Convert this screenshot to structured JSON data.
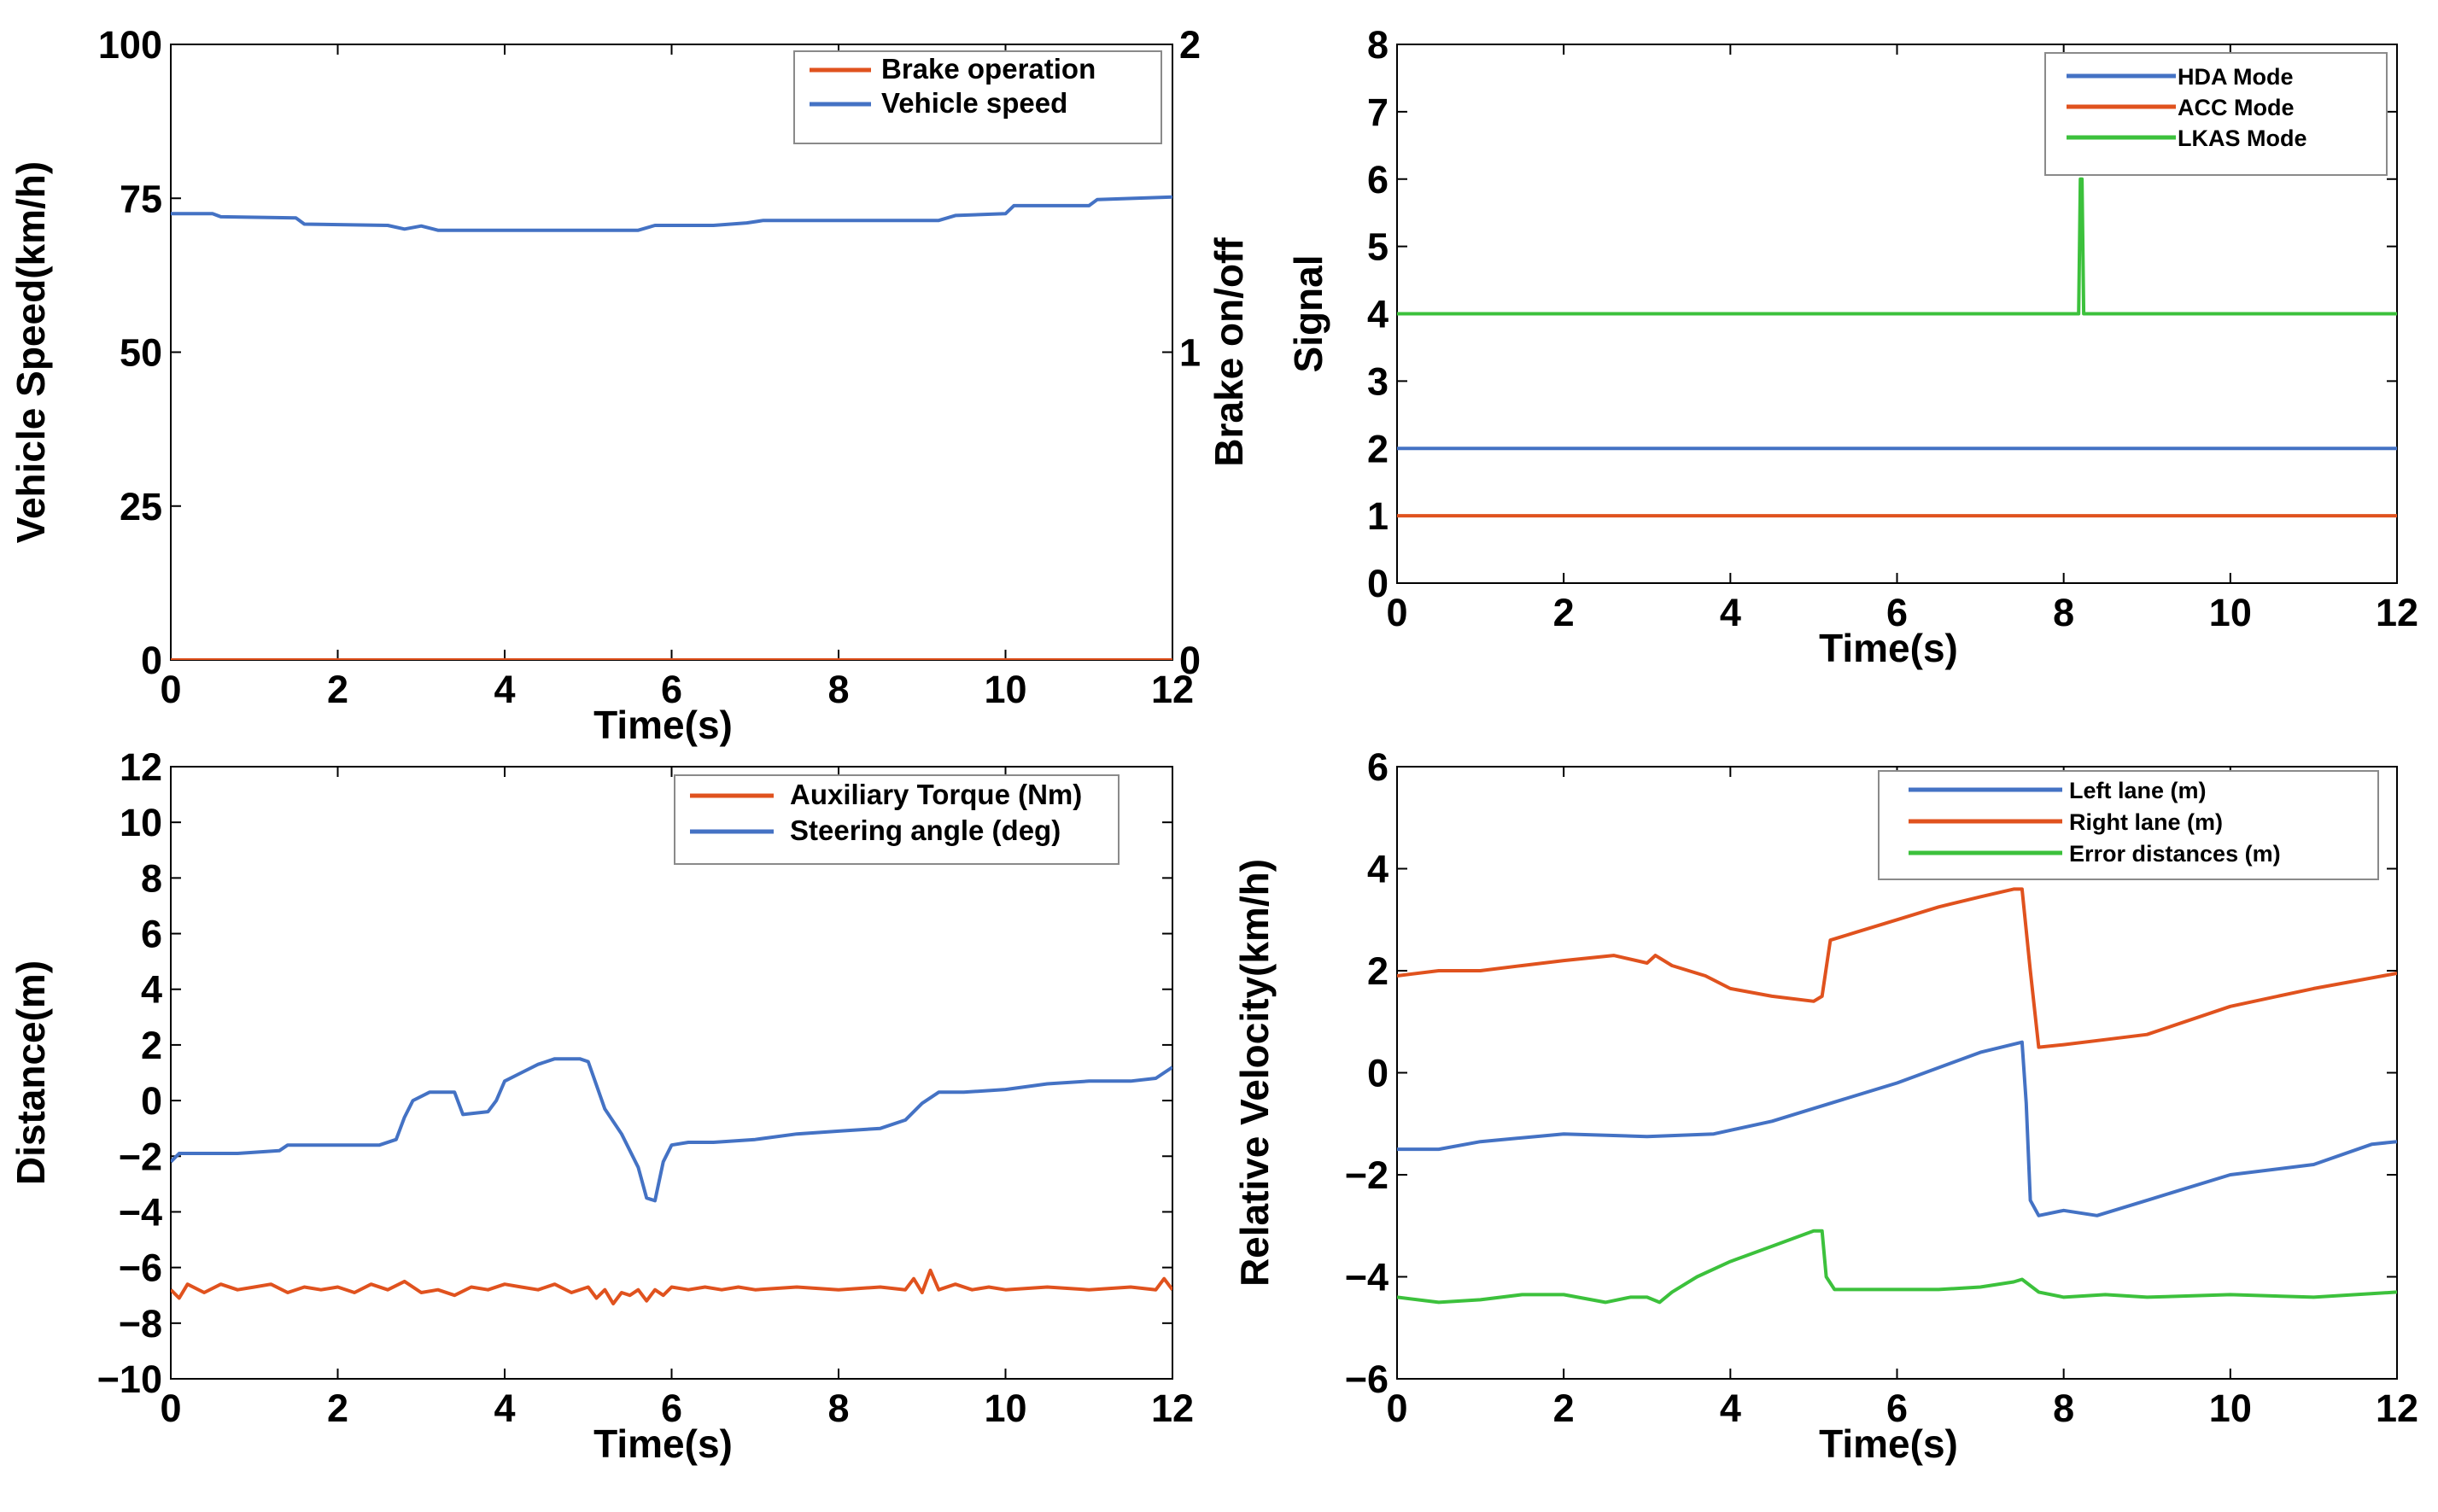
{
  "colors": {
    "blue": "#4472c4",
    "orange": "#e0521e",
    "green": "#3cc13c",
    "axis": "#000000"
  },
  "chart_data": [
    {
      "id": "p1",
      "type": "line",
      "xlabel": "Time(s)",
      "ylabel": "Vehicle Speed(km/h)",
      "y2label": "Brake on/off",
      "xlim": [
        0,
        12
      ],
      "ylim": [
        0,
        100
      ],
      "y2lim": [
        0,
        2
      ],
      "xticks": [
        "0",
        "2",
        "4",
        "6",
        "8",
        "10",
        "12"
      ],
      "yticks": [
        "0",
        "25",
        "50",
        "75",
        "100"
      ],
      "y2ticks": [
        "0",
        "1",
        "2"
      ],
      "legend_position": "top-right",
      "series": [
        {
          "name": "Brake operation",
          "color": "orange",
          "axis": "right",
          "x": [
            0,
            12
          ],
          "y": [
            0,
            0
          ]
        },
        {
          "name": "Vehicle speed",
          "color": "blue",
          "axis": "left",
          "x": [
            0,
            0.5,
            0.6,
            1.5,
            1.6,
            2.6,
            2.8,
            3.0,
            3.2,
            4.0,
            5.0,
            5.6,
            5.8,
            6.5,
            6.9,
            7.1,
            7.5,
            9.2,
            9.4,
            10.0,
            10.1,
            11.0,
            11.1,
            12.0
          ],
          "y": [
            72.5,
            72.5,
            72,
            71.8,
            70.8,
            70.6,
            70,
            70.5,
            69.8,
            69.8,
            69.8,
            69.8,
            70.6,
            70.6,
            71,
            71.4,
            71.4,
            71.4,
            72.2,
            72.5,
            73.8,
            73.8,
            74.8,
            75.2
          ]
        }
      ]
    },
    {
      "id": "p2",
      "type": "line",
      "xlabel": "Time(s)",
      "ylabel": "Signal",
      "xlim": [
        0,
        12
      ],
      "ylim": [
        0,
        8
      ],
      "xticks": [
        "0",
        "2",
        "4",
        "6",
        "8",
        "10",
        "12"
      ],
      "yticks": [
        "0",
        "1",
        "2",
        "3",
        "4",
        "5",
        "6",
        "7",
        "8"
      ],
      "legend_position": "top-right",
      "series": [
        {
          "name": "HDA Mode",
          "color": "blue",
          "x": [
            0,
            12
          ],
          "y": [
            2,
            2
          ]
        },
        {
          "name": "ACC Mode",
          "color": "orange",
          "x": [
            0,
            12
          ],
          "y": [
            1,
            1
          ]
        },
        {
          "name": "LKAS Mode",
          "color": "green",
          "x": [
            0,
            8.18,
            8.2,
            8.22,
            8.24,
            12
          ],
          "y": [
            4,
            4,
            6,
            6,
            4,
            4
          ]
        }
      ]
    },
    {
      "id": "p3",
      "type": "line",
      "xlabel": "Time(s)",
      "ylabel": "Distance(m)",
      "xlim": [
        0,
        12
      ],
      "ylim": [
        -10,
        12
      ],
      "xticks": [
        "0",
        "2",
        "4",
        "6",
        "8",
        "10",
        "12"
      ],
      "yticks": [
        "−10",
        "−8",
        "−6",
        "−4",
        "−2",
        "0",
        "2",
        "4",
        "6",
        "8",
        "10",
        "12"
      ],
      "legend_position": "top-right",
      "series": [
        {
          "name": "Auxiliary Torque (Nm)",
          "color": "orange",
          "x": [
            0,
            0.1,
            0.2,
            0.4,
            0.6,
            0.8,
            1.0,
            1.2,
            1.4,
            1.6,
            1.8,
            2.0,
            2.2,
            2.4,
            2.6,
            2.8,
            3.0,
            3.2,
            3.4,
            3.6,
            3.8,
            4.0,
            4.2,
            4.4,
            4.6,
            4.8,
            5.0,
            5.1,
            5.2,
            5.3,
            5.4,
            5.5,
            5.6,
            5.7,
            5.8,
            5.9,
            6.0,
            6.2,
            6.4,
            6.6,
            6.8,
            7.0,
            7.5,
            8.0,
            8.5,
            8.8,
            8.9,
            9.0,
            9.1,
            9.2,
            9.4,
            9.6,
            9.8,
            10.0,
            10.5,
            11.0,
            11.5,
            11.8,
            11.9,
            12.0
          ],
          "y": [
            -6.8,
            -7.1,
            -6.6,
            -6.9,
            -6.6,
            -6.8,
            -6.7,
            -6.6,
            -6.9,
            -6.7,
            -6.8,
            -6.7,
            -6.9,
            -6.6,
            -6.8,
            -6.5,
            -6.9,
            -6.8,
            -7.0,
            -6.7,
            -6.8,
            -6.6,
            -6.7,
            -6.8,
            -6.6,
            -6.9,
            -6.7,
            -7.1,
            -6.8,
            -7.3,
            -6.9,
            -7.0,
            -6.8,
            -7.2,
            -6.8,
            -7.0,
            -6.7,
            -6.8,
            -6.7,
            -6.8,
            -6.7,
            -6.8,
            -6.7,
            -6.8,
            -6.7,
            -6.8,
            -6.4,
            -6.9,
            -6.1,
            -6.8,
            -6.6,
            -6.8,
            -6.7,
            -6.8,
            -6.7,
            -6.8,
            -6.7,
            -6.8,
            -6.4,
            -6.8
          ]
        },
        {
          "name": "Steering angle (deg)",
          "color": "blue",
          "x": [
            0,
            0.1,
            0.2,
            0.8,
            1.3,
            1.4,
            2.5,
            2.7,
            2.8,
            2.9,
            3.1,
            3.4,
            3.5,
            3.8,
            3.9,
            4.0,
            4.2,
            4.4,
            4.6,
            4.9,
            5.0,
            5.2,
            5.4,
            5.6,
            5.7,
            5.8,
            5.9,
            6.0,
            6.2,
            6.5,
            7.0,
            7.5,
            8.0,
            8.5,
            8.8,
            9.0,
            9.2,
            9.5,
            10.0,
            10.5,
            11.0,
            11.5,
            11.8,
            11.9,
            12.0
          ],
          "y": [
            -2.2,
            -1.9,
            -1.9,
            -1.9,
            -1.8,
            -1.6,
            -1.6,
            -1.4,
            -0.6,
            0,
            0.3,
            0.3,
            -0.5,
            -0.4,
            0,
            0.7,
            1.0,
            1.3,
            1.5,
            1.5,
            1.4,
            -0.3,
            -1.2,
            -2.4,
            -3.5,
            -3.6,
            -2.2,
            -1.6,
            -1.5,
            -1.5,
            -1.4,
            -1.2,
            -1.1,
            -1.0,
            -0.7,
            -0.1,
            0.3,
            0.3,
            0.4,
            0.6,
            0.7,
            0.7,
            0.8,
            1.0,
            1.2
          ]
        }
      ]
    },
    {
      "id": "p4",
      "type": "line",
      "xlabel": "Time(s)",
      "ylabel": "Relative Velocity(km/h)",
      "xlim": [
        0,
        12
      ],
      "ylim": [
        -6,
        6
      ],
      "xticks": [
        "0",
        "2",
        "4",
        "6",
        "8",
        "10",
        "12"
      ],
      "yticks": [
        "−6",
        "−4",
        "−2",
        "0",
        "2",
        "4",
        "6"
      ],
      "legend_position": "top-right",
      "series": [
        {
          "name": "Left lane  (m)",
          "color": "blue",
          "x": [
            0,
            0.5,
            1.0,
            2.0,
            3.0,
            3.8,
            4.5,
            5.0,
            6.0,
            7.0,
            7.5,
            7.55,
            7.6,
            7.7,
            8.0,
            8.4,
            9.0,
            10.0,
            11.0,
            11.7,
            12.0
          ],
          "y": [
            -1.5,
            -1.5,
            -1.35,
            -1.2,
            -1.25,
            -1.2,
            -0.95,
            -0.7,
            -0.2,
            0.4,
            0.6,
            -0.6,
            -2.5,
            -2.8,
            -2.7,
            -2.8,
            -2.5,
            -2.0,
            -1.8,
            -1.4,
            -1.35
          ]
        },
        {
          "name": "Right lane  (m)",
          "color": "orange",
          "x": [
            0,
            0.5,
            1.0,
            1.5,
            2.0,
            2.6,
            3.0,
            3.1,
            3.3,
            3.7,
            4.0,
            4.5,
            5.0,
            5.1,
            5.2,
            5.5,
            6.0,
            6.5,
            7.0,
            7.4,
            7.5,
            7.6,
            7.7,
            8.0,
            8.5,
            9.0,
            10.0,
            11.0,
            12.0
          ],
          "y": [
            1.9,
            2.0,
            2.0,
            2.1,
            2.2,
            2.3,
            2.15,
            2.3,
            2.1,
            1.9,
            1.65,
            1.5,
            1.4,
            1.5,
            2.6,
            2.75,
            3.0,
            3.25,
            3.45,
            3.6,
            3.6,
            2.0,
            0.5,
            0.55,
            0.65,
            0.75,
            1.3,
            1.65,
            1.95
          ]
        },
        {
          "name": "Error distances  (m)",
          "color": "green",
          "x": [
            0,
            0.5,
            1.0,
            1.5,
            2.0,
            2.5,
            2.8,
            3.0,
            3.15,
            3.3,
            3.6,
            4.0,
            4.5,
            5.0,
            5.1,
            5.15,
            5.25,
            5.5,
            6.0,
            6.5,
            7.0,
            7.4,
            7.5,
            7.7,
            8.0,
            8.5,
            9.0,
            10.0,
            11.0,
            12.0
          ],
          "y": [
            -4.4,
            -4.5,
            -4.45,
            -4.35,
            -4.35,
            -4.5,
            -4.4,
            -4.4,
            -4.5,
            -4.3,
            -4.0,
            -3.7,
            -3.4,
            -3.1,
            -3.1,
            -4.0,
            -4.25,
            -4.25,
            -4.25,
            -4.25,
            -4.2,
            -4.1,
            -4.05,
            -4.3,
            -4.4,
            -4.35,
            -4.4,
            -4.35,
            -4.4,
            -4.3
          ]
        }
      ]
    }
  ]
}
